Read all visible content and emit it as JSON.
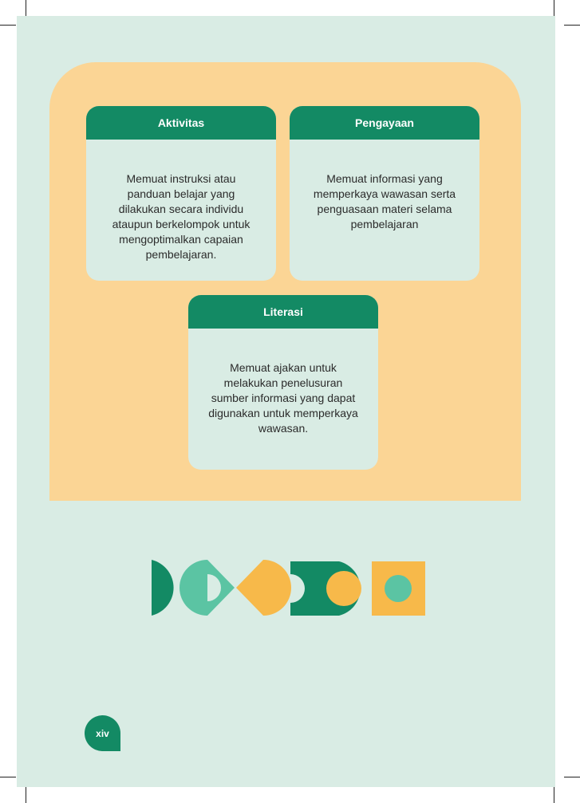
{
  "colors": {
    "background": "#d9ece4",
    "panel": "#fbd595",
    "header_green": "#138a64",
    "teal": "#5bc4a3",
    "yellow": "#f7b94a"
  },
  "cards": {
    "aktivitas": {
      "title": "Aktivitas",
      "lines": [
        "Memuat instruksi atau",
        "panduan belajar yang",
        "dilakukan secara individu",
        "ataupun berkelompok untuk",
        "mengoptimalkan capaian",
        "pembelajaran."
      ]
    },
    "pengayaan": {
      "title": "Pengayaan",
      "lines": [
        "Memuat informasi yang",
        "memperkaya wawasan serta",
        "penguasaan materi selama",
        "pembelajaran"
      ]
    },
    "literasi": {
      "title": "Literasi",
      "lines": [
        "Memuat ajakan untuk",
        "melakukan penelusuran",
        "sumber informasi yang dapat",
        "digunakan untuk memperkaya",
        "wawasan."
      ]
    }
  },
  "page_number": "xiv"
}
